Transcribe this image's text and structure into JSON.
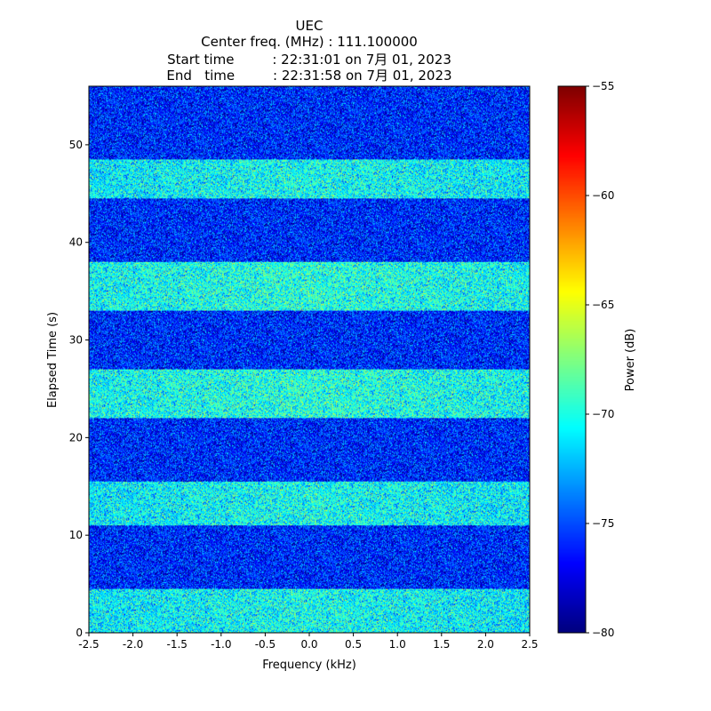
{
  "chart_data": {
    "type": "heatmap",
    "title_lines": [
      "UEC",
      "Center freq. (MHz) : 111.100000",
      "Start time         : 22:31:01 on 7月 01, 2023",
      "End   time         : 22:31:58 on 7月 01, 2023"
    ],
    "xlabel": "Frequency (kHz)",
    "ylabel": "Elapsed Time (s)",
    "colorbar_label": "Power (dB)",
    "xlim": [
      -2.5,
      2.5
    ],
    "ylim": [
      0,
      56
    ],
    "x_ticks": [
      -2.5,
      -2.0,
      -1.5,
      -1.0,
      -0.5,
      0.0,
      0.5,
      1.0,
      1.5,
      2.0,
      2.5
    ],
    "x_tick_labels": [
      "-2.5",
      "-2.0",
      "-1.5",
      "-1.0",
      "-0.5",
      "0.0",
      "0.5",
      "1.0",
      "1.5",
      "2.0",
      "2.5"
    ],
    "y_ticks": [
      0,
      10,
      20,
      30,
      40,
      50
    ],
    "y_tick_labels": [
      "0",
      "10",
      "20",
      "30",
      "40",
      "50"
    ],
    "colorbar_range": [
      -80,
      -55
    ],
    "colorbar_ticks": [
      -80,
      -75,
      -70,
      -65,
      -60,
      -55
    ],
    "colorbar_tick_labels": [
      "−80",
      "−75",
      "−70",
      "−65",
      "−60",
      "−55"
    ],
    "colormap": "jet",
    "bands": [
      {
        "t_start": 0,
        "t_end": 4.5,
        "mean_power": -71.0
      },
      {
        "t_start": 4.5,
        "t_end": 11.0,
        "mean_power": -76.0
      },
      {
        "t_start": 11.0,
        "t_end": 15.5,
        "mean_power": -71.0
      },
      {
        "t_start": 15.5,
        "t_end": 22.0,
        "mean_power": -76.0
      },
      {
        "t_start": 22.0,
        "t_end": 27.0,
        "mean_power": -70.5
      },
      {
        "t_start": 27.0,
        "t_end": 33.0,
        "mean_power": -76.0
      },
      {
        "t_start": 33.0,
        "t_end": 38.0,
        "mean_power": -70.5
      },
      {
        "t_start": 38.0,
        "t_end": 44.5,
        "mean_power": -76.0
      },
      {
        "t_start": 44.5,
        "t_end": 48.5,
        "mean_power": -71.0
      },
      {
        "t_start": 48.5,
        "t_end": 56.0,
        "mean_power": -76.0
      }
    ]
  }
}
